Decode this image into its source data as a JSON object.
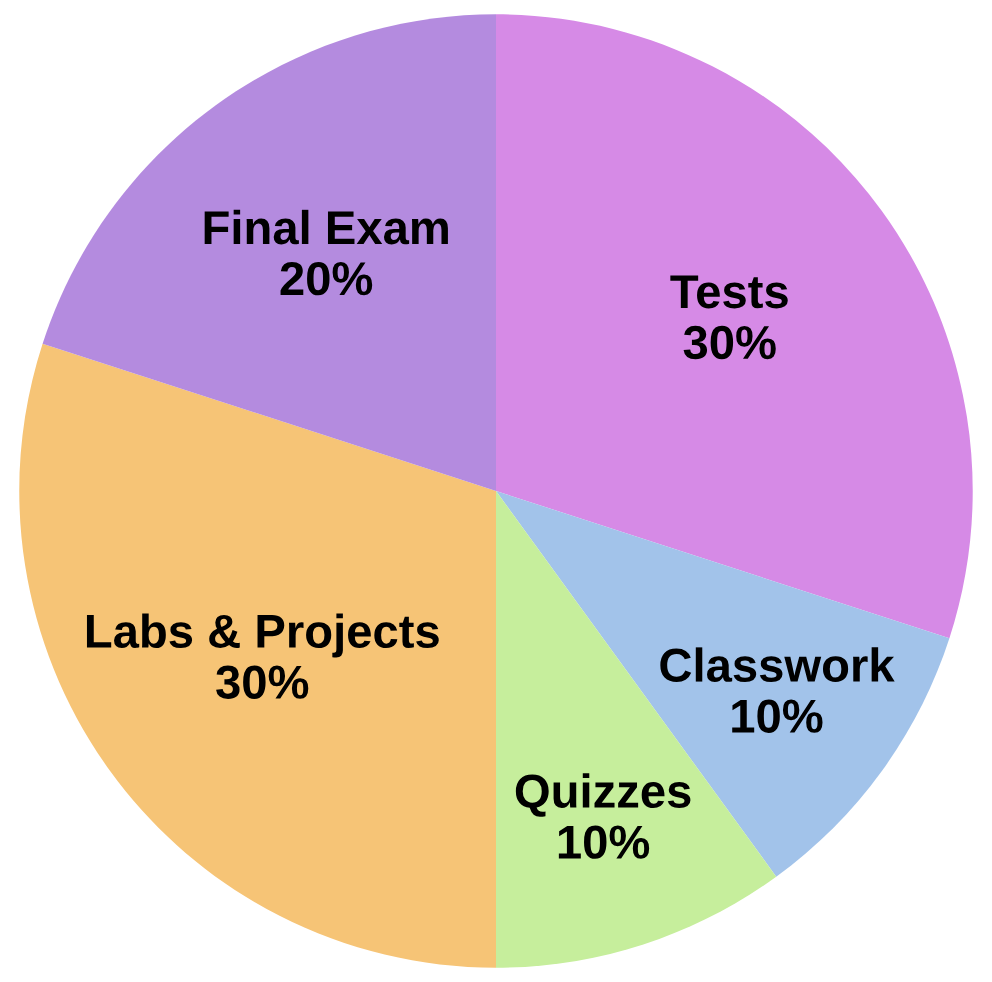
{
  "chart_data": {
    "type": "pie",
    "categories": [
      "Tests",
      "Classwork",
      "Quizzes",
      "Labs & Projects",
      "Final Exam"
    ],
    "values": [
      30,
      10,
      10,
      30,
      20
    ],
    "value_labels": [
      "30%",
      "10%",
      "10%",
      "30%",
      "20%"
    ],
    "colors": [
      "#d68ae6",
      "#a2c3ea",
      "#c6ee9c",
      "#f6c476",
      "#b48bdf"
    ]
  }
}
